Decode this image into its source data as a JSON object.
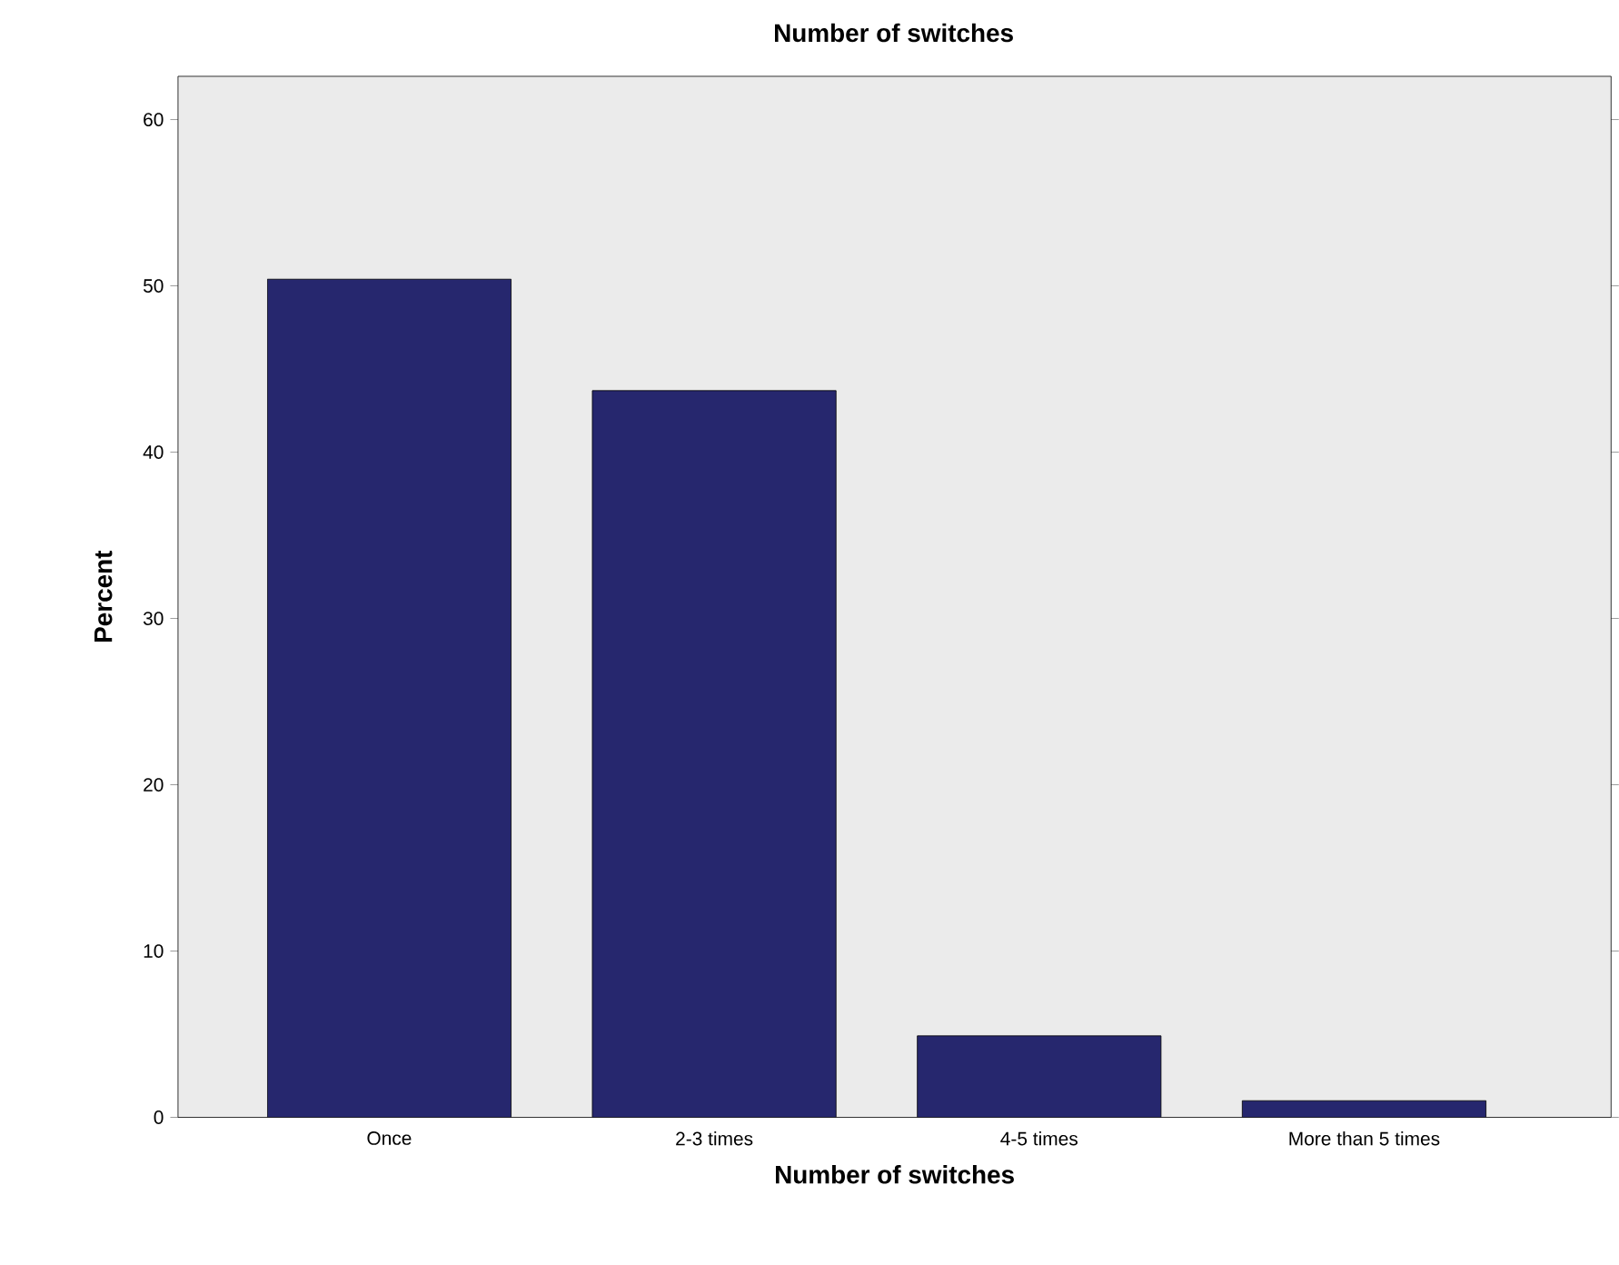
{
  "chart_data": {
    "type": "bar",
    "title": "Number of switches",
    "xlabel": "Number of switches",
    "ylabel": "Percent",
    "categories": [
      "Once",
      "2-3 times",
      "4-5 times",
      "More than 5 times"
    ],
    "values": [
      50.4,
      43.7,
      4.9,
      1.0
    ],
    "color": "#26276e",
    "ylim": [
      0,
      62.6
    ],
    "yticks": [
      0,
      10,
      20,
      30,
      40,
      50,
      60
    ],
    "grid": false
  }
}
